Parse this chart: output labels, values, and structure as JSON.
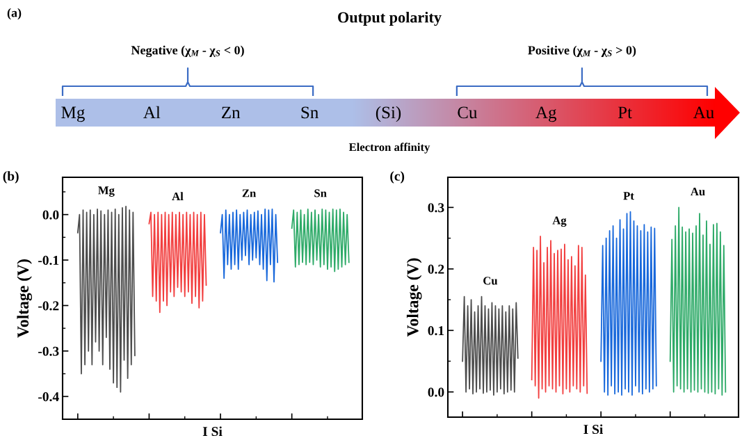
{
  "chart_data": [
    {
      "type": "other",
      "title": "Output polarity",
      "xlabel": "Electron affinity",
      "categories": [
        "Mg",
        "Al",
        "Zn",
        "Sn",
        "(Si)",
        "Cu",
        "Ag",
        "Pt",
        "Au"
      ],
      "annotations": [
        "(a)",
        "Negative (χ$_{M}$ - χ$_{S}$ < 0)",
        "Positive (χ$_{M}$ - χ$_{S}$ > 0)"
      ]
    },
    {
      "type": "line",
      "xlabel": "I Si",
      "ylabel": "Voltage (V)",
      "annotations": [
        "(b)"
      ],
      "ylim": [
        -0.45,
        0.082
      ],
      "yticks": [
        -0.4,
        -0.3,
        -0.2,
        -0.1,
        {
          "value": 0.0,
          "label": "0.0"
        }
      ],
      "categories": [
        null,
        null,
        null,
        null,
        null,
        null,
        null,
        null,
        null,
        null,
        null,
        null,
        null,
        null,
        null,
        null,
        null,
        null,
        null,
        null,
        null,
        null,
        null,
        null,
        null,
        null,
        null,
        null,
        null,
        null,
        null,
        null,
        null,
        null,
        null,
        null,
        null,
        null,
        null,
        null,
        null,
        null,
        null,
        null,
        null,
        null,
        null,
        null,
        null,
        null,
        null,
        null,
        null,
        null,
        null,
        null,
        null,
        null,
        null,
        null,
        null,
        null,
        null,
        null,
        null,
        null,
        null,
        null,
        null,
        null,
        null,
        null,
        null,
        null,
        null,
        null,
        null,
        null,
        null,
        null,
        null,
        null,
        null,
        null,
        null,
        null,
        null,
        null,
        null,
        null,
        null,
        null,
        null,
        null,
        null,
        null,
        null,
        null,
        null,
        null,
        null,
        null,
        null,
        null,
        null,
        null,
        null,
        null,
        null,
        null,
        null,
        null,
        null,
        null,
        null,
        null,
        null,
        null,
        null,
        null,
        null,
        null,
        null,
        null,
        null,
        null,
        null,
        null,
        null,
        null,
        null,
        null,
        null,
        null,
        null,
        null,
        null,
        null,
        null,
        null,
        null,
        null,
        null,
        null,
        null,
        null,
        null,
        null,
        null,
        null,
        null,
        null,
        null,
        null,
        null,
        null,
        null,
        null,
        null,
        null,
        null,
        null,
        null,
        null,
        null,
        null,
        null,
        null
      ],
      "series": [
        {
          "name": "Mg",
          "color": "#4d4d4d",
          "values": [
            null,
            null,
            null,
            null,
            null,
            null,
            null,
            null,
            -0.04,
            0.0,
            -0.35,
            0.01,
            -0.33,
            0.005,
            -0.3,
            0.01,
            -0.33,
            0.0,
            -0.28,
            0.012,
            -0.3,
            0.008,
            -0.33,
            0.0,
            -0.27,
            0.01,
            -0.34,
            0.005,
            -0.37,
            0.012,
            -0.38,
            0.0,
            -0.39,
            0.015,
            -0.32,
            0.018,
            -0.36,
            0.01,
            -0.33,
            0.005,
            -0.31,
            null,
            null,
            null,
            null,
            null,
            null,
            null,
            null,
            null,
            null,
            null,
            null,
            null,
            null,
            null,
            null,
            null,
            null,
            null,
            null,
            null,
            null,
            null,
            null,
            null,
            null,
            null,
            null,
            null,
            null,
            null,
            null,
            null,
            null,
            null,
            null,
            null,
            null,
            null,
            null,
            null,
            null,
            null,
            null,
            null,
            null,
            null,
            null,
            null,
            null,
            null,
            null,
            null,
            null,
            null,
            null,
            null,
            null,
            null,
            null,
            null,
            null,
            null,
            null,
            null,
            null,
            null,
            null,
            null,
            null,
            null,
            null,
            null,
            null,
            null,
            null,
            null,
            null,
            null,
            null,
            null,
            null,
            null,
            null,
            null,
            null,
            null,
            null,
            null,
            null,
            null,
            null,
            null,
            null,
            null,
            null,
            null,
            null,
            null,
            null,
            null,
            null,
            null,
            null,
            null,
            null,
            null,
            null,
            null,
            null,
            null,
            null,
            null,
            null,
            null,
            null,
            null,
            null,
            null,
            null,
            null,
            null,
            null,
            null,
            null,
            null,
            null
          ]
        },
        {
          "name": "Al",
          "color": "#f23f3f",
          "values": [
            null,
            null,
            null,
            null,
            null,
            null,
            null,
            null,
            null,
            null,
            null,
            null,
            null,
            null,
            null,
            null,
            null,
            null,
            null,
            null,
            null,
            null,
            null,
            null,
            null,
            null,
            null,
            null,
            null,
            null,
            null,
            null,
            null,
            null,
            null,
            null,
            null,
            null,
            null,
            null,
            null,
            null,
            null,
            null,
            null,
            null,
            null,
            null,
            -0.02,
            0.005,
            -0.18,
            0.0,
            -0.19,
            0.005,
            -0.215,
            0.0,
            -0.19,
            0.005,
            -0.2,
            0.0,
            -0.17,
            0.005,
            -0.18,
            0.0,
            -0.16,
            0.005,
            -0.17,
            0.0,
            -0.18,
            0.005,
            -0.17,
            0.0,
            -0.195,
            0.005,
            -0.18,
            0.0,
            -0.205,
            0.005,
            -0.19,
            0.0,
            -0.155,
            null,
            null,
            null,
            null,
            null,
            null,
            null,
            null,
            null,
            null,
            null,
            null,
            null,
            null,
            null,
            null,
            null,
            null,
            null,
            null,
            null,
            null,
            null,
            null,
            null,
            null,
            null,
            null,
            null,
            null,
            null,
            null,
            null,
            null,
            null,
            null,
            null,
            null,
            null,
            null,
            null,
            null,
            null,
            null,
            null,
            null,
            null,
            null,
            null,
            null,
            null,
            null,
            null,
            null,
            null,
            null,
            null,
            null,
            null,
            null,
            null,
            null,
            null,
            null,
            null,
            null,
            null,
            null,
            null,
            null,
            null,
            null,
            null,
            null,
            null,
            null,
            null,
            null,
            null,
            null,
            null,
            null,
            null,
            null,
            null,
            null,
            null
          ]
        },
        {
          "name": "Zn",
          "color": "#1868db",
          "values": [
            null,
            null,
            null,
            null,
            null,
            null,
            null,
            null,
            null,
            null,
            null,
            null,
            null,
            null,
            null,
            null,
            null,
            null,
            null,
            null,
            null,
            null,
            null,
            null,
            null,
            null,
            null,
            null,
            null,
            null,
            null,
            null,
            null,
            null,
            null,
            null,
            null,
            null,
            null,
            null,
            null,
            null,
            null,
            null,
            null,
            null,
            null,
            null,
            null,
            null,
            null,
            null,
            null,
            null,
            null,
            null,
            null,
            null,
            null,
            null,
            null,
            null,
            null,
            null,
            null,
            null,
            null,
            null,
            null,
            null,
            null,
            null,
            null,
            null,
            null,
            null,
            null,
            null,
            null,
            null,
            null,
            null,
            null,
            null,
            null,
            null,
            null,
            null,
            -0.04,
            0.0,
            -0.14,
            0.01,
            -0.11,
            0.0,
            -0.12,
            0.005,
            -0.11,
            0.01,
            -0.12,
            0.0,
            -0.1,
            0.005,
            -0.09,
            0.01,
            -0.11,
            0.0,
            -0.1,
            0.005,
            -0.095,
            0.008,
            -0.11,
            0.0,
            -0.12,
            0.012,
            -0.145,
            0.01,
            -0.11,
            0.012,
            -0.148,
            0.0,
            -0.105,
            null,
            null,
            null,
            null,
            null,
            null,
            null,
            null,
            null,
            null,
            null,
            null,
            null,
            null,
            null,
            null,
            null,
            null,
            null,
            null,
            null,
            null,
            null,
            null,
            null,
            null,
            null,
            null,
            null,
            null,
            null,
            null,
            null,
            null,
            null,
            null,
            null,
            null,
            null,
            null,
            null,
            null,
            null,
            null,
            null,
            null,
            null
          ]
        },
        {
          "name": "Sn",
          "color": "#2eaa68",
          "values": [
            null,
            null,
            null,
            null,
            null,
            null,
            null,
            null,
            null,
            null,
            null,
            null,
            null,
            null,
            null,
            null,
            null,
            null,
            null,
            null,
            null,
            null,
            null,
            null,
            null,
            null,
            null,
            null,
            null,
            null,
            null,
            null,
            null,
            null,
            null,
            null,
            null,
            null,
            null,
            null,
            null,
            null,
            null,
            null,
            null,
            null,
            null,
            null,
            null,
            null,
            null,
            null,
            null,
            null,
            null,
            null,
            null,
            null,
            null,
            null,
            null,
            null,
            null,
            null,
            null,
            null,
            null,
            null,
            null,
            null,
            null,
            null,
            null,
            null,
            null,
            null,
            null,
            null,
            null,
            null,
            null,
            null,
            null,
            null,
            null,
            null,
            null,
            null,
            null,
            null,
            null,
            null,
            null,
            null,
            null,
            null,
            null,
            null,
            null,
            null,
            null,
            null,
            null,
            null,
            null,
            null,
            null,
            null,
            null,
            null,
            null,
            null,
            null,
            null,
            null,
            null,
            null,
            null,
            null,
            null,
            null,
            null,
            null,
            null,
            null,
            null,
            null,
            null,
            -0.03,
            0.01,
            -0.115,
            0.005,
            -0.11,
            0.01,
            -0.105,
            0.0,
            -0.11,
            0.012,
            -0.105,
            0.005,
            -0.11,
            0.01,
            -0.1,
            0.0,
            -0.115,
            0.012,
            -0.11,
            0.01,
            -0.12,
            0.005,
            -0.115,
            0.012,
            -0.125,
            0.01,
            -0.12,
            0.012,
            -0.115,
            0.005,
            -0.11,
            0.0,
            -0.105,
            null,
            null,
            null,
            null,
            null,
            null,
            null
          ]
        }
      ]
    },
    {
      "type": "line",
      "xlabel": "I Si",
      "ylabel": "Voltage (V)",
      "annotations": [
        "(c)"
      ],
      "ylim": [
        -0.041,
        0.349
      ],
      "yticks": [
        {
          "value": 0.0,
          "label": "0.0"
        },
        0.1,
        0.2,
        0.3
      ],
      "categories": [
        null,
        null,
        null,
        null,
        null,
        null,
        null,
        null,
        null,
        null,
        null,
        null,
        null,
        null,
        null,
        null,
        null,
        null,
        null,
        null,
        null,
        null,
        null,
        null,
        null,
        null,
        null,
        null,
        null,
        null,
        null,
        null,
        null,
        null,
        null,
        null,
        null,
        null,
        null,
        null,
        null,
        null,
        null,
        null,
        null,
        null,
        null,
        null,
        null,
        null,
        null,
        null,
        null,
        null,
        null,
        null,
        null,
        null,
        null,
        null,
        null,
        null,
        null,
        null,
        null,
        null,
        null,
        null,
        null,
        null,
        null,
        null,
        null,
        null,
        null,
        null,
        null,
        null,
        null,
        null,
        null,
        null,
        null,
        null,
        null,
        null,
        null,
        null,
        null,
        null,
        null,
        null,
        null,
        null,
        null,
        null,
        null,
        null,
        null,
        null,
        null,
        null,
        null,
        null,
        null,
        null,
        null,
        null,
        null,
        null,
        null,
        null,
        null,
        null,
        null,
        null,
        null,
        null,
        null,
        null,
        null,
        null,
        null,
        null,
        null,
        null,
        null,
        null,
        null,
        null,
        null,
        null,
        null,
        null,
        null,
        null,
        null,
        null,
        null,
        null,
        null,
        null,
        null,
        null,
        null,
        null,
        null,
        null,
        null,
        null,
        null,
        null,
        null,
        null,
        null,
        null,
        null,
        null,
        null,
        null,
        null,
        null,
        null,
        null,
        null,
        null,
        null,
        null
      ],
      "series": [
        {
          "name": "Cu",
          "color": "#4d4d4d",
          "values": [
            null,
            null,
            null,
            null,
            null,
            null,
            null,
            null,
            0.05,
            0.155,
            0.0,
            0.14,
            0.005,
            0.15,
            -0.003,
            0.13,
            0.0,
            0.14,
            0.005,
            0.155,
            -0.002,
            0.14,
            0.0,
            0.135,
            0.003,
            0.145,
            -0.005,
            0.14,
            0.0,
            0.135,
            0.005,
            0.14,
            -0.003,
            0.13,
            0.0,
            0.14,
            0.003,
            0.135,
            0.0,
            0.145,
            0.055,
            null,
            null,
            null,
            null,
            null,
            null,
            null,
            null,
            null,
            null,
            null,
            null,
            null,
            null,
            null,
            null,
            null,
            null,
            null,
            null,
            null,
            null,
            null,
            null,
            null,
            null,
            null,
            null,
            null,
            null,
            null,
            null,
            null,
            null,
            null,
            null,
            null,
            null,
            null,
            null,
            null,
            null,
            null,
            null,
            null,
            null,
            null,
            null,
            null,
            null,
            null,
            null,
            null,
            null,
            null,
            null,
            null,
            null,
            null,
            null,
            null,
            null,
            null,
            null,
            null,
            null,
            null,
            null,
            null,
            null,
            null,
            null,
            null,
            null,
            null,
            null,
            null,
            null,
            null,
            null,
            null,
            null,
            null,
            null,
            null,
            null,
            null,
            null,
            null,
            null,
            null,
            null,
            null,
            null,
            null,
            null,
            null,
            null,
            null,
            null,
            null,
            null,
            null,
            null,
            null,
            null,
            null,
            null,
            null,
            null,
            null,
            null,
            null,
            null,
            null,
            null,
            null,
            null,
            null,
            null,
            null,
            null,
            null,
            null,
            null,
            null,
            null
          ]
        },
        {
          "name": "Ag",
          "color": "#f23f3f",
          "values": [
            null,
            null,
            null,
            null,
            null,
            null,
            null,
            null,
            null,
            null,
            null,
            null,
            null,
            null,
            null,
            null,
            null,
            null,
            null,
            null,
            null,
            null,
            null,
            null,
            null,
            null,
            null,
            null,
            null,
            null,
            null,
            null,
            null,
            null,
            null,
            null,
            null,
            null,
            null,
            null,
            null,
            null,
            null,
            null,
            null,
            null,
            null,
            null,
            0.02,
            0.235,
            0.01,
            0.23,
            -0.01,
            0.253,
            0.005,
            0.21,
            0.0,
            0.235,
            0.01,
            0.246,
            0.005,
            0.225,
            0.0,
            0.23,
            0.01,
            0.232,
            -0.003,
            0.24,
            0.005,
            0.215,
            0.0,
            0.22,
            0.01,
            0.205,
            0.005,
            0.238,
            0.0,
            0.235,
            0.01,
            0.19,
            -0.002,
            null,
            null,
            null,
            null,
            null,
            null,
            null,
            null,
            null,
            null,
            null,
            null,
            null,
            null,
            null,
            null,
            null,
            null,
            null,
            null,
            null,
            null,
            null,
            null,
            null,
            null,
            null,
            null,
            null,
            null,
            null,
            null,
            null,
            null,
            null,
            null,
            null,
            null,
            null,
            null,
            null,
            null,
            null,
            null,
            null,
            null,
            null,
            null,
            null,
            null,
            null,
            null,
            null,
            null,
            null,
            null,
            null,
            null,
            null,
            null,
            null,
            null,
            null,
            null,
            null,
            null,
            null,
            null,
            null,
            null,
            null,
            null,
            null,
            null,
            null,
            null,
            null,
            null,
            null,
            null,
            null,
            null,
            null,
            null,
            null,
            null,
            null
          ]
        },
        {
          "name": "Pt",
          "color": "#1868db",
          "values": [
            null,
            null,
            null,
            null,
            null,
            null,
            null,
            null,
            null,
            null,
            null,
            null,
            null,
            null,
            null,
            null,
            null,
            null,
            null,
            null,
            null,
            null,
            null,
            null,
            null,
            null,
            null,
            null,
            null,
            null,
            null,
            null,
            null,
            null,
            null,
            null,
            null,
            null,
            null,
            null,
            null,
            null,
            null,
            null,
            null,
            null,
            null,
            null,
            null,
            null,
            null,
            null,
            null,
            null,
            null,
            null,
            null,
            null,
            null,
            null,
            null,
            null,
            null,
            null,
            null,
            null,
            null,
            null,
            null,
            null,
            null,
            null,
            null,
            null,
            null,
            null,
            null,
            null,
            null,
            null,
            null,
            null,
            null,
            null,
            null,
            null,
            null,
            null,
            0.05,
            0.238,
            0.0,
            0.25,
            -0.005,
            0.262,
            0.01,
            0.27,
            -0.003,
            0.25,
            0.0,
            0.28,
            -0.005,
            0.265,
            0.005,
            0.29,
            0.0,
            0.293,
            -0.005,
            0.278,
            0.01,
            0.27,
            0.0,
            0.262,
            -0.003,
            0.272,
            0.005,
            0.26,
            0.0,
            0.268,
            0.005,
            0.266,
            0.01,
            null,
            null,
            null,
            null,
            null,
            null,
            null,
            null,
            null,
            null,
            null,
            null,
            null,
            null,
            null,
            null,
            null,
            null,
            null,
            null,
            null,
            null,
            null,
            null,
            null,
            null,
            null,
            null,
            null,
            null,
            null,
            null,
            null,
            null,
            null,
            null,
            null,
            null,
            null,
            null,
            null,
            null,
            null,
            null,
            null,
            null,
            null
          ]
        },
        {
          "name": "Au",
          "color": "#2eaa68",
          "values": [
            null,
            null,
            null,
            null,
            null,
            null,
            null,
            null,
            null,
            null,
            null,
            null,
            null,
            null,
            null,
            null,
            null,
            null,
            null,
            null,
            null,
            null,
            null,
            null,
            null,
            null,
            null,
            null,
            null,
            null,
            null,
            null,
            null,
            null,
            null,
            null,
            null,
            null,
            null,
            null,
            null,
            null,
            null,
            null,
            null,
            null,
            null,
            null,
            null,
            null,
            null,
            null,
            null,
            null,
            null,
            null,
            null,
            null,
            null,
            null,
            null,
            null,
            null,
            null,
            null,
            null,
            null,
            null,
            null,
            null,
            null,
            null,
            null,
            null,
            null,
            null,
            null,
            null,
            null,
            null,
            null,
            null,
            null,
            null,
            null,
            null,
            null,
            null,
            null,
            null,
            null,
            null,
            null,
            null,
            null,
            null,
            null,
            null,
            null,
            null,
            null,
            null,
            null,
            null,
            null,
            null,
            null,
            null,
            null,
            null,
            null,
            null,
            null,
            null,
            null,
            null,
            null,
            null,
            null,
            null,
            null,
            null,
            null,
            null,
            null,
            null,
            null,
            null,
            0.05,
            0.248,
            0.0,
            0.27,
            0.01,
            0.3,
            0.005,
            0.268,
            0.0,
            0.26,
            0.005,
            0.265,
            0.0,
            0.258,
            0.003,
            0.27,
            0.0,
            0.29,
            0.005,
            0.255,
            0.0,
            0.278,
            -0.002,
            0.24,
            0.0,
            0.272,
            -0.003,
            0.274,
            0.005,
            0.26,
            -0.005,
            0.238,
            0.0,
            null,
            null,
            null,
            null,
            null,
            null,
            null
          ]
        }
      ]
    }
  ]
}
